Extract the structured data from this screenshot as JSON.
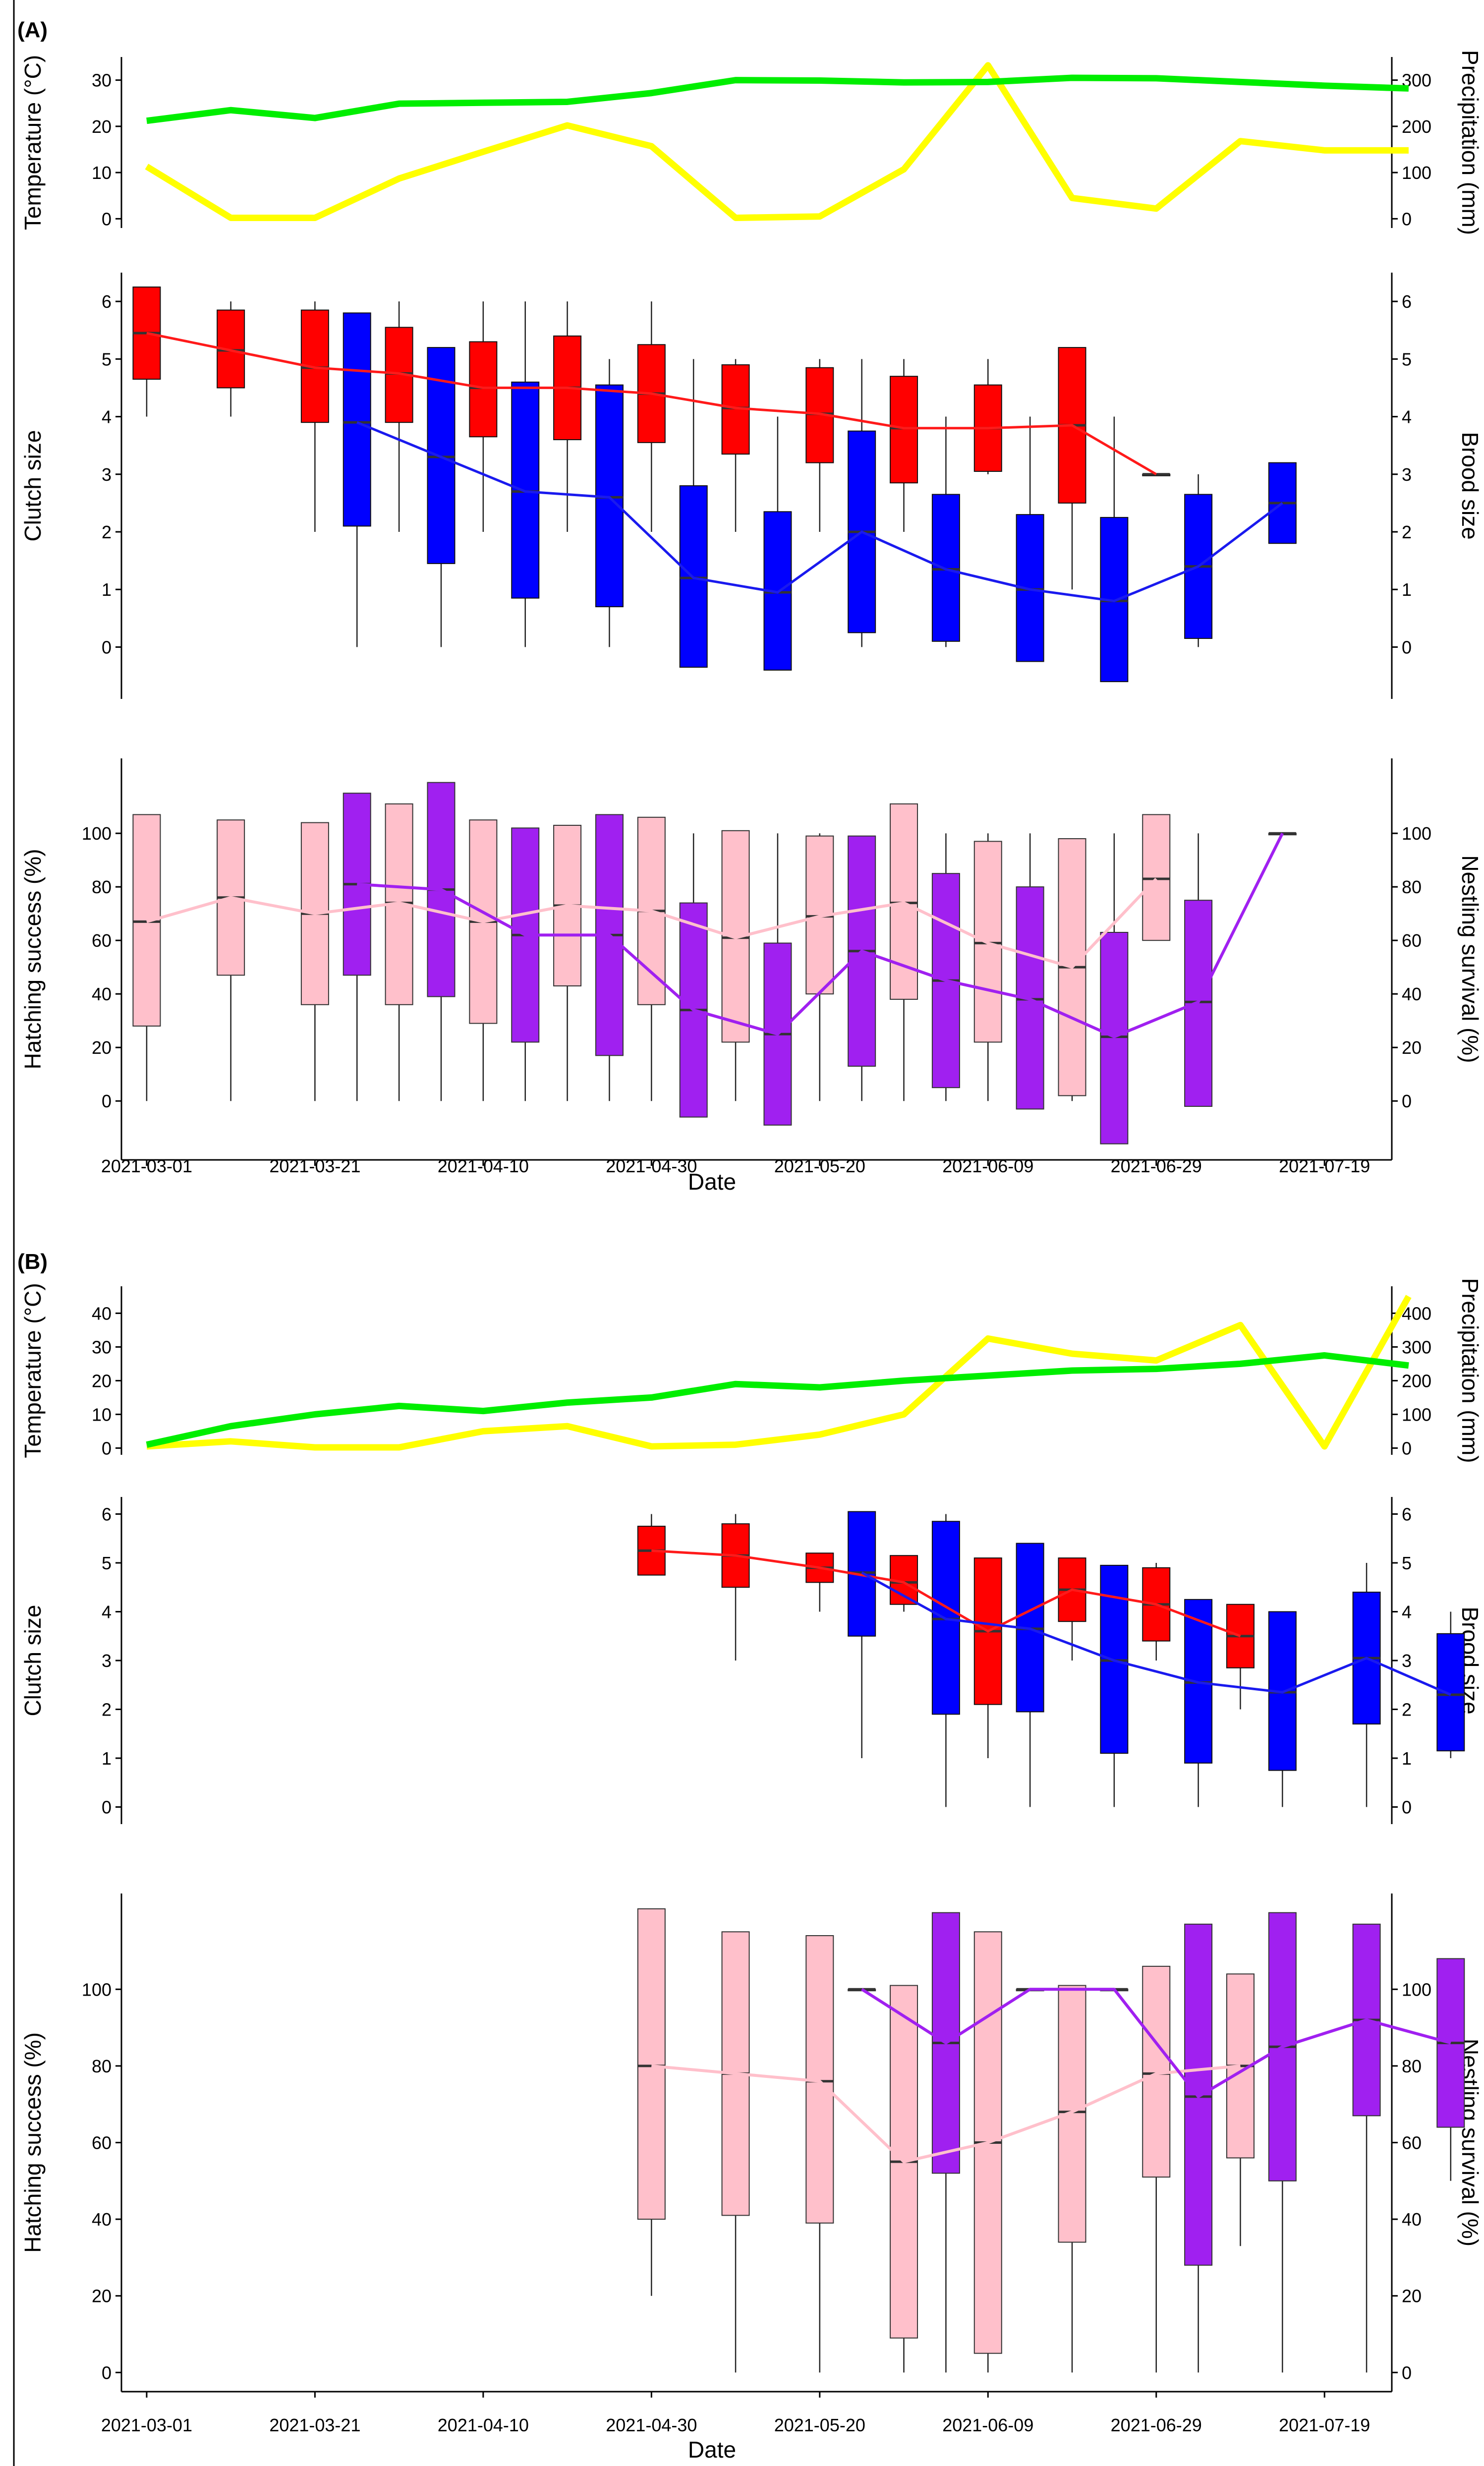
{
  "colors": {
    "temperature": "#00ee00",
    "precipitation": "#ffff00",
    "clutch_box": "#ff0000",
    "clutch_line": "#ff1a1a",
    "brood_box": "#0000ff",
    "brood_line": "#1a1aee",
    "hatching_box": "#ffc0cb",
    "hatching_line": "#ffc0cb",
    "nestling_box": "#a020f0",
    "nestling_line": "#a020f0",
    "axis": "#000000"
  },
  "chart_data": [
    {
      "panel": "(A)",
      "type": "composite (line + boxplot)",
      "x_tick_labels": [
        "2021-03-01",
        "2021-03-21",
        "2021-04-10",
        "2021-04-30",
        "2021-05-20",
        "2021-06-09",
        "2021-06-29",
        "2021-07-19"
      ],
      "x_ticks_day": [
        0,
        20,
        40,
        60,
        80,
        100,
        120,
        140
      ],
      "xlim_day": [
        -3,
        148
      ],
      "xlabel": "Date",
      "weather": {
        "ylabel_left": "Temperature (°C)",
        "ylabel_right": "Precipitation (mm)",
        "temp_ylim": [
          -2,
          35
        ],
        "temp_ticks": [
          0,
          10,
          20,
          30
        ],
        "precip_ylim": [
          -20,
          350
        ],
        "precip_ticks": [
          0,
          100,
          200,
          300
        ],
        "temperature": {
          "name": "Temperature",
          "x_day": [
            0,
            10,
            20,
            30,
            40,
            50,
            60,
            70,
            80,
            90,
            100,
            110,
            120,
            130,
            140,
            150
          ],
          "values": [
            21.2,
            23.5,
            21.8,
            24.9,
            25.1,
            25.3,
            27.2,
            30.0,
            29.9,
            29.5,
            29.6,
            30.5,
            30.4,
            29.6,
            28.8,
            28.2
          ]
        },
        "precipitation": {
          "name": "Precipitation",
          "x_day": [
            0,
            10,
            20,
            30,
            40,
            50,
            60,
            70,
            80,
            90,
            100,
            110,
            120,
            130,
            140,
            150
          ],
          "values": [
            113,
            2,
            2,
            87,
            145,
            202,
            157,
            2,
            5,
            107,
            332,
            45,
            22,
            168,
            148,
            148
          ]
        }
      },
      "clutch": {
        "ylabel_left": "Clutch size",
        "ylabel_right": "Brood size",
        "ylim": [
          -0.9,
          6.5
        ],
        "ticks": [
          0,
          1,
          2,
          3,
          4,
          5,
          6
        ],
        "clutch_boxes": [
          {
            "x": 0,
            "q1": 4.65,
            "median": 5.45,
            "q3": 6.25,
            "min": 4,
            "max": 6.25
          },
          {
            "x": 10,
            "q1": 4.5,
            "median": 5.15,
            "q3": 5.85,
            "min": 4,
            "max": 6
          },
          {
            "x": 20,
            "q1": 3.9,
            "median": 4.85,
            "q3": 5.85,
            "min": 2,
            "max": 6
          },
          {
            "x": 30,
            "q1": 3.9,
            "median": 4.75,
            "q3": 5.55,
            "min": 2,
            "max": 6
          },
          {
            "x": 40,
            "q1": 3.65,
            "median": 4.5,
            "q3": 5.3,
            "min": 2,
            "max": 6
          },
          {
            "x": 50,
            "q1": 3.6,
            "median": 4.5,
            "q3": 5.4,
            "min": 2,
            "max": 6
          },
          {
            "x": 60,
            "q1": 3.55,
            "median": 4.4,
            "q3": 5.25,
            "min": 2,
            "max": 6
          },
          {
            "x": 70,
            "q1": 3.35,
            "median": 4.15,
            "q3": 4.9,
            "min": 2,
            "max": 5
          },
          {
            "x": 80,
            "q1": 3.2,
            "median": 4.05,
            "q3": 4.85,
            "min": 2,
            "max": 5
          },
          {
            "x": 90,
            "q1": 2.85,
            "median": 3.8,
            "q3": 4.7,
            "min": 2,
            "max": 5
          },
          {
            "x": 100,
            "q1": 3.05,
            "median": 3.8,
            "q3": 4.55,
            "min": 3,
            "max": 5
          },
          {
            "x": 110,
            "q1": 2.5,
            "median": 3.85,
            "q3": 5.2,
            "min": 1,
            "max": 5.2
          },
          {
            "x": 120,
            "q1": 3,
            "median": 3,
            "q3": 3,
            "min": 3,
            "max": 3
          }
        ],
        "brood_boxes": [
          {
            "x": 25,
            "q1": 2.1,
            "median": 3.9,
            "q3": 5.8,
            "min": 0,
            "max": 5.8
          },
          {
            "x": 35,
            "q1": 1.45,
            "median": 3.3,
            "q3": 5.2,
            "min": 0,
            "max": 5.2
          },
          {
            "x": 45,
            "q1": 0.85,
            "median": 2.7,
            "q3": 4.6,
            "min": 0,
            "max": 6
          },
          {
            "x": 55,
            "q1": 0.7,
            "median": 2.6,
            "q3": 4.55,
            "min": 0,
            "max": 5
          },
          {
            "x": 65,
            "q1": -0.35,
            "median": 1.2,
            "q3": 2.8,
            "min": -0.35,
            "max": 5
          },
          {
            "x": 75,
            "q1": -0.4,
            "median": 0.95,
            "q3": 2.35,
            "min": -0.4,
            "max": 4
          },
          {
            "x": 85,
            "q1": 0.25,
            "median": 2.0,
            "q3": 3.75,
            "min": 0,
            "max": 5
          },
          {
            "x": 95,
            "q1": 0.1,
            "median": 1.35,
            "q3": 2.65,
            "min": 0,
            "max": 4
          },
          {
            "x": 105,
            "q1": -0.25,
            "median": 1.0,
            "q3": 2.3,
            "min": -0.25,
            "max": 4
          },
          {
            "x": 115,
            "q1": -0.6,
            "median": 0.8,
            "q3": 2.25,
            "min": -0.6,
            "max": 4
          },
          {
            "x": 125,
            "q1": 0.15,
            "median": 1.4,
            "q3": 2.65,
            "min": 0,
            "max": 3
          },
          {
            "x": 135,
            "q1": 1.8,
            "median": 2.5,
            "q3": 3.2,
            "min": 1.8,
            "max": 3.2
          }
        ]
      },
      "survival": {
        "ylabel_left": "Hatching success (%)",
        "ylabel_right": "Nestling survival (%)",
        "ylim": [
          -22,
          128
        ],
        "ticks": [
          0,
          20,
          40,
          60,
          80,
          100
        ],
        "hatching_boxes": [
          {
            "x": 0,
            "q1": 28,
            "median": 67,
            "q3": 107,
            "min": 0,
            "max": 107
          },
          {
            "x": 10,
            "q1": 47,
            "median": 76,
            "q3": 105,
            "min": 0,
            "max": 105
          },
          {
            "x": 20,
            "q1": 36,
            "median": 70,
            "q3": 104,
            "min": 0,
            "max": 104
          },
          {
            "x": 30,
            "q1": 36,
            "median": 74,
            "q3": 111,
            "min": 0,
            "max": 111
          },
          {
            "x": 40,
            "q1": 29,
            "median": 67,
            "q3": 105,
            "min": 0,
            "max": 105
          },
          {
            "x": 50,
            "q1": 43,
            "median": 73,
            "q3": 103,
            "min": 0,
            "max": 103
          },
          {
            "x": 60,
            "q1": 36,
            "median": 71,
            "q3": 106,
            "min": 0,
            "max": 106
          },
          {
            "x": 70,
            "q1": 22,
            "median": 61,
            "q3": 101,
            "min": 0,
            "max": 101
          },
          {
            "x": 80,
            "q1": 40,
            "median": 69,
            "q3": 99,
            "min": 0,
            "max": 100
          },
          {
            "x": 90,
            "q1": 38,
            "median": 74,
            "q3": 111,
            "min": 0,
            "max": 111
          },
          {
            "x": 100,
            "q1": 22,
            "median": 59,
            "q3": 97,
            "min": 0,
            "max": 100
          },
          {
            "x": 110,
            "q1": 2,
            "median": 50,
            "q3": 98,
            "min": 0,
            "max": 98
          },
          {
            "x": 120,
            "q1": 60,
            "median": 83,
            "q3": 107,
            "min": 60,
            "max": 107
          }
        ],
        "nestling_boxes": [
          {
            "x": 25,
            "q1": 47,
            "median": 81,
            "q3": 115,
            "min": 0,
            "max": 115
          },
          {
            "x": 35,
            "q1": 39,
            "median": 79,
            "q3": 119,
            "min": 0,
            "max": 119
          },
          {
            "x": 45,
            "q1": 22,
            "median": 62,
            "q3": 102,
            "min": 0,
            "max": 102
          },
          {
            "x": 55,
            "q1": 17,
            "median": 62,
            "q3": 107,
            "min": 0,
            "max": 107
          },
          {
            "x": 65,
            "q1": -6,
            "median": 34,
            "q3": 74,
            "min": -6,
            "max": 100
          },
          {
            "x": 75,
            "q1": -9,
            "median": 25,
            "q3": 59,
            "min": -9,
            "max": 100
          },
          {
            "x": 85,
            "q1": 13,
            "median": 56,
            "q3": 99,
            "min": 0,
            "max": 99
          },
          {
            "x": 95,
            "q1": 5,
            "median": 45,
            "q3": 85,
            "min": 0,
            "max": 100
          },
          {
            "x": 105,
            "q1": -3,
            "median": 38,
            "q3": 80,
            "min": -3,
            "max": 100
          },
          {
            "x": 115,
            "q1": -16,
            "median": 24,
            "q3": 63,
            "min": -16,
            "max": 100
          },
          {
            "x": 125,
            "q1": -2,
            "median": 37,
            "q3": 75,
            "min": -2,
            "max": 100
          },
          {
            "x": 135,
            "q1": 100,
            "median": 100,
            "q3": 100,
            "min": 100,
            "max": 100
          }
        ]
      }
    },
    {
      "panel": "(B)",
      "type": "composite (line + boxplot)",
      "x_tick_labels": [
        "2021-03-01",
        "2021-03-21",
        "2021-04-10",
        "2021-04-30",
        "2021-05-20",
        "2021-06-09",
        "2021-06-29",
        "2021-07-19"
      ],
      "x_ticks_day": [
        0,
        20,
        40,
        60,
        80,
        100,
        120,
        140
      ],
      "xlim_day": [
        -3,
        148
      ],
      "xlabel": "Date",
      "weather": {
        "ylabel_left": "Temperature (°C)",
        "ylabel_right": "Precipitation (mm)",
        "temp_ylim": [
          -2,
          48
        ],
        "temp_ticks": [
          0,
          10,
          20,
          30,
          40
        ],
        "precip_ylim": [
          -20,
          480
        ],
        "precip_ticks": [
          0,
          100,
          200,
          300,
          400
        ],
        "temperature": {
          "name": "Temperature",
          "x_day": [
            0,
            10,
            20,
            30,
            40,
            50,
            60,
            70,
            80,
            90,
            100,
            110,
            120,
            130,
            140,
            150
          ],
          "values": [
            1,
            6.5,
            10,
            12.5,
            11,
            13.5,
            15,
            19,
            18,
            20,
            21.5,
            23,
            23.5,
            25,
            27.5,
            24.5
          ]
        },
        "precipitation": {
          "name": "Precipitation",
          "x_day": [
            0,
            10,
            20,
            30,
            40,
            50,
            60,
            70,
            80,
            90,
            100,
            110,
            120,
            130,
            140,
            150
          ],
          "values": [
            5,
            20,
            2,
            2,
            50,
            65,
            5,
            10,
            40,
            100,
            325,
            280,
            260,
            365,
            5,
            450
          ]
        }
      },
      "clutch": {
        "ylabel_left": "Clutch size",
        "ylabel_right": "Brood size",
        "ylim": [
          -0.35,
          6.35
        ],
        "ticks": [
          0,
          1,
          2,
          3,
          4,
          5,
          6
        ],
        "clutch_boxes": [
          {
            "x": 60,
            "q1": 4.75,
            "median": 5.25,
            "q3": 5.75,
            "min": 4.75,
            "max": 6
          },
          {
            "x": 70,
            "q1": 4.5,
            "median": 5.15,
            "q3": 5.8,
            "min": 3,
            "max": 6
          },
          {
            "x": 80,
            "q1": 4.6,
            "median": 4.9,
            "q3": 5.2,
            "min": 4,
            "max": 5.2
          },
          {
            "x": 90,
            "q1": 4.15,
            "median": 4.6,
            "q3": 5.15,
            "min": 4,
            "max": 5.15
          },
          {
            "x": 100,
            "q1": 2.1,
            "median": 3.6,
            "q3": 5.1,
            "min": 1,
            "max": 5.1
          },
          {
            "x": 110,
            "q1": 3.8,
            "median": 4.45,
            "q3": 5.1,
            "min": 3,
            "max": 5.1
          },
          {
            "x": 120,
            "q1": 3.4,
            "median": 4.15,
            "q3": 4.9,
            "min": 3,
            "max": 5
          },
          {
            "x": 130,
            "q1": 2.85,
            "median": 3.5,
            "q3": 4.15,
            "min": 2,
            "max": 4.15
          }
        ],
        "brood_boxes": [
          {
            "x": 85,
            "q1": 3.5,
            "median": 4.8,
            "q3": 6.05,
            "min": 1,
            "max": 6.05
          },
          {
            "x": 95,
            "q1": 1.9,
            "median": 3.85,
            "q3": 5.85,
            "min": 0,
            "max": 6
          },
          {
            "x": 105,
            "q1": 1.95,
            "median": 3.65,
            "q3": 5.4,
            "min": 0,
            "max": 5.4
          },
          {
            "x": 115,
            "q1": 1.1,
            "median": 3.0,
            "q3": 4.95,
            "min": 0,
            "max": 4.95
          },
          {
            "x": 125,
            "q1": 0.9,
            "median": 2.55,
            "q3": 4.25,
            "min": 0,
            "max": 4.25
          },
          {
            "x": 135,
            "q1": 0.75,
            "median": 2.35,
            "q3": 4.0,
            "min": 0,
            "max": 4.0
          },
          {
            "x": 145,
            "q1": 1.7,
            "median": 3.05,
            "q3": 4.4,
            "min": 0,
            "max": 5
          },
          {
            "x": 155,
            "q1": 1.15,
            "median": 2.3,
            "q3": 3.55,
            "min": 1,
            "max": 4
          }
        ]
      },
      "survival": {
        "ylabel_left": "Hatching success (%)",
        "ylabel_right": "Nestling survival (%)",
        "ylim": [
          -5,
          125
        ],
        "ticks": [
          0,
          20,
          40,
          60,
          80,
          100
        ],
        "hatching_boxes": [
          {
            "x": 60,
            "q1": 40,
            "median": 80,
            "q3": 121,
            "min": 20,
            "max": 121
          },
          {
            "x": 70,
            "q1": 41,
            "median": 78,
            "q3": 115,
            "min": 0,
            "max": 115
          },
          {
            "x": 80,
            "q1": 39,
            "median": 76,
            "q3": 114,
            "min": 0,
            "max": 114
          },
          {
            "x": 90,
            "q1": 9,
            "median": 55,
            "q3": 101,
            "min": 0,
            "max": 101
          },
          {
            "x": 100,
            "q1": 5,
            "median": 60,
            "q3": 115,
            "min": 0,
            "max": 115
          },
          {
            "x": 110,
            "q1": 34,
            "median": 68,
            "q3": 101,
            "min": 0,
            "max": 101
          },
          {
            "x": 120,
            "q1": 51,
            "median": 78,
            "q3": 106,
            "min": 0,
            "max": 106
          },
          {
            "x": 130,
            "q1": 56,
            "median": 80,
            "q3": 104,
            "min": 33,
            "max": 104
          }
        ],
        "nestling_boxes": [
          {
            "x": 85,
            "q1": 100,
            "median": 100,
            "q3": 100,
            "min": 100,
            "max": 100
          },
          {
            "x": 95,
            "q1": 52,
            "median": 86,
            "q3": 120,
            "min": 0,
            "max": 120
          },
          {
            "x": 105,
            "q1": 100,
            "median": 100,
            "q3": 100,
            "min": 100,
            "max": 100
          },
          {
            "x": 115,
            "q1": 100,
            "median": 100,
            "q3": 100,
            "min": 100,
            "max": 100
          },
          {
            "x": 125,
            "q1": 28,
            "median": 72,
            "q3": 117,
            "min": 0,
            "max": 117
          },
          {
            "x": 135,
            "q1": 50,
            "median": 85,
            "q3": 120,
            "min": 0,
            "max": 120
          },
          {
            "x": 145,
            "q1": 67,
            "median": 92,
            "q3": 117,
            "min": 0,
            "max": 117
          },
          {
            "x": 155,
            "q1": 64,
            "median": 86,
            "q3": 108,
            "min": 50,
            "max": 108
          }
        ]
      }
    }
  ]
}
